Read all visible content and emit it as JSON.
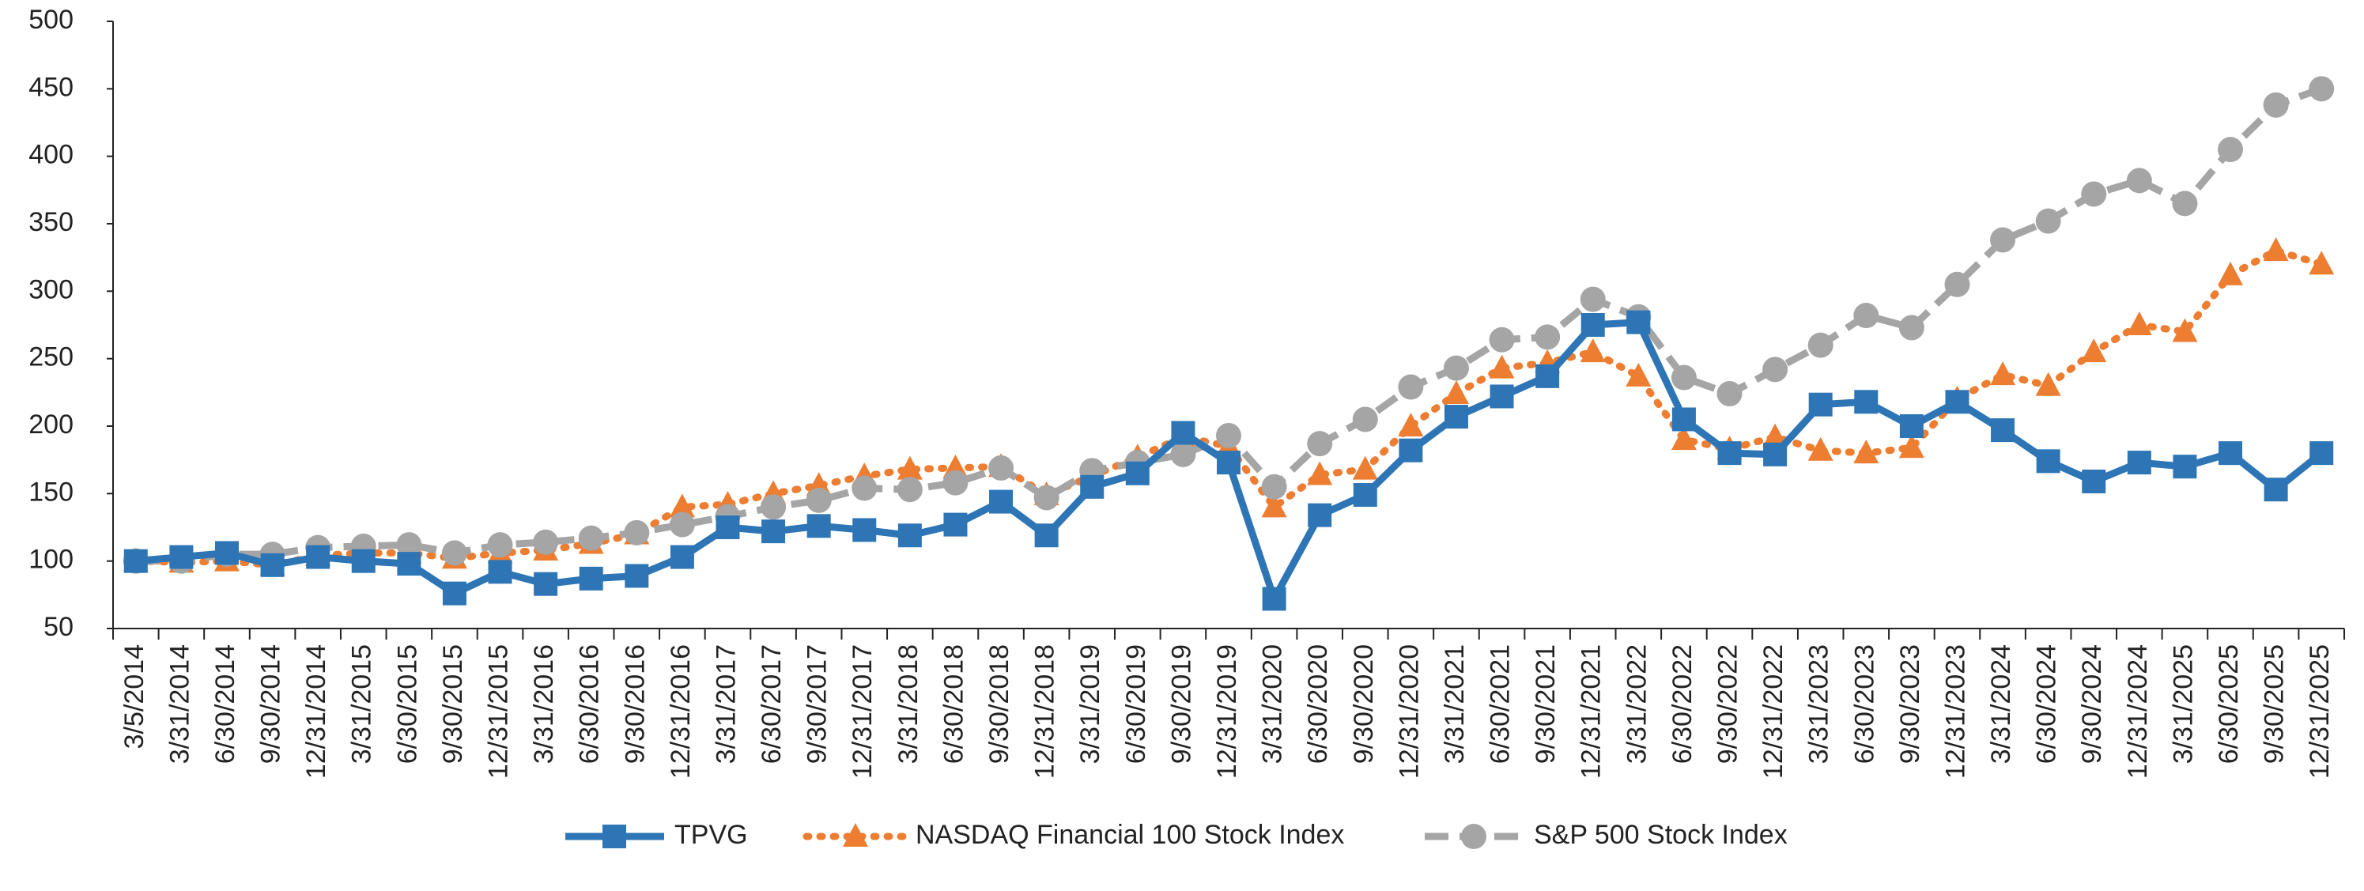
{
  "chart_data": {
    "type": "line",
    "categories": [
      "3/5/2014",
      "3/31/2014",
      "6/30/2014",
      "9/30/2014",
      "12/31/2014",
      "3/31/2015",
      "6/30/2015",
      "9/30/2015",
      "12/31/2015",
      "3/31/2016",
      "6/30/2016",
      "9/30/2016",
      "12/31/2016",
      "3/31/2017",
      "6/30/2017",
      "9/30/2017",
      "12/31/2017",
      "3/31/2018",
      "6/30/2018",
      "9/30/2018",
      "12/31/2018",
      "3/31/2019",
      "6/30/2019",
      "9/30/2019",
      "12/31/2019",
      "3/31/2020",
      "6/30/2020",
      "9/30/2020",
      "12/31/2020",
      "3/31/2021",
      "6/30/2021",
      "9/30/2021",
      "12/31/2021",
      "3/31/2022",
      "6/30/2022",
      "9/30/2022",
      "12/31/2022",
      "3/31/2023",
      "6/30/2023",
      "9/30/2023",
      "12/31/2023",
      "3/31/2024",
      "6/30/2024",
      "9/30/2024",
      "12/31/2024",
      "3/31/2025",
      "6/30/2025",
      "9/30/2025",
      "12/31/2025"
    ],
    "series": [
      {
        "name": "TPVG",
        "color": "#2e75b6",
        "marker": "square",
        "line_style": "solid",
        "values": [
          100,
          103,
          106,
          97,
          103,
          100,
          98,
          76,
          92,
          83,
          87,
          89,
          103,
          125,
          122,
          126,
          123,
          119,
          127,
          144,
          119,
          155,
          165,
          195,
          173,
          72,
          134,
          149,
          182,
          207,
          222,
          237,
          275,
          277,
          205,
          180,
          179,
          216,
          218,
          200,
          218,
          197,
          174,
          159,
          173,
          170,
          180,
          153,
          180
        ]
      },
      {
        "name": "NASDAQ Financial 100 Stock Index",
        "color": "#ed7d31",
        "marker": "triangle",
        "line_style": "dotted",
        "values": [
          100,
          99,
          100,
          97,
          104,
          106,
          106,
          102,
          106,
          108,
          113,
          120,
          140,
          142,
          150,
          156,
          163,
          168,
          169,
          170,
          149,
          163,
          177,
          192,
          185,
          140,
          164,
          168,
          200,
          224,
          243,
          247,
          255,
          237,
          190,
          183,
          192,
          182,
          180,
          184,
          220,
          238,
          230,
          255,
          275,
          270,
          312,
          330,
          320
        ]
      },
      {
        "name": "S&P 500 Stock Index",
        "color": "#a5a5a5",
        "marker": "circle",
        "line_style": "dashed",
        "values": [
          100,
          100,
          105,
          105,
          110,
          111,
          112,
          106,
          112,
          114,
          117,
          121,
          127,
          133,
          140,
          145,
          154,
          153,
          158,
          169,
          147,
          167,
          173,
          179,
          193,
          155,
          187,
          205,
          229,
          243,
          264,
          266,
          294,
          281,
          236,
          224,
          242,
          260,
          282,
          273,
          305,
          338,
          352,
          372,
          382,
          365,
          405,
          438,
          450
        ]
      }
    ],
    "ylim": [
      50,
      500
    ],
    "yticks": [
      50,
      100,
      150,
      200,
      250,
      300,
      350,
      400,
      450,
      500
    ],
    "grid": false,
    "legend": "bottom"
  }
}
